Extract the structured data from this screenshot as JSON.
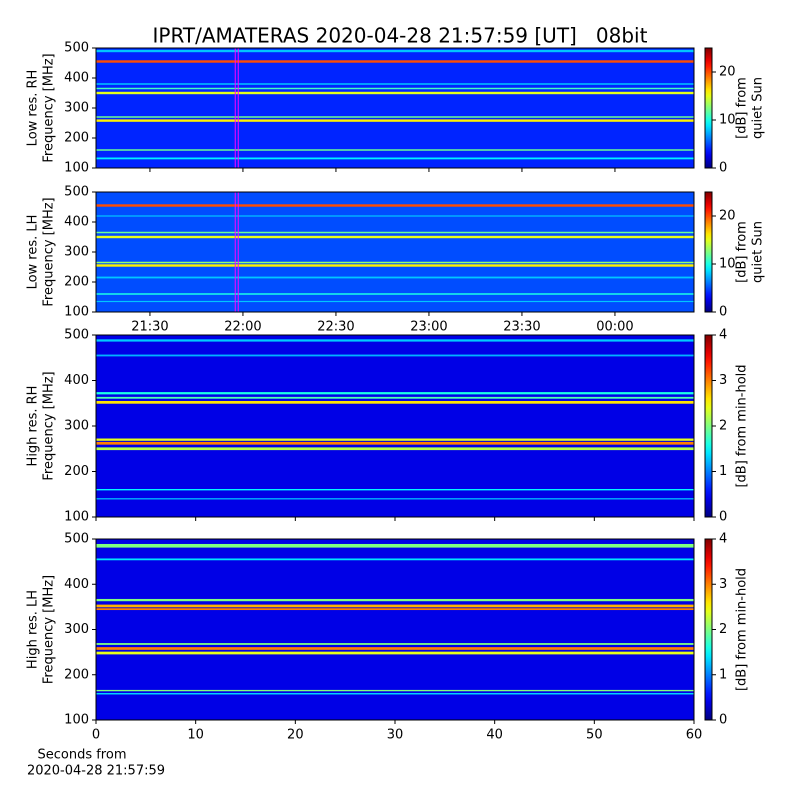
{
  "title": "IPRT/AMATERAS 2020-04-28 21:57:59 [UT]   08bit",
  "chart_data": [
    {
      "type": "heatmap",
      "y_label": [
        "Low res. RH",
        "Frequency [MHz]"
      ],
      "colormap": "jet",
      "ylim": [
        100,
        500
      ],
      "yticks": [
        100,
        200,
        300,
        400,
        500
      ],
      "xlim": [
        1272.6,
        1465.5
      ],
      "xticks": [
        1290,
        1320,
        1350,
        1380,
        1410,
        1440
      ],
      "marker": 1318,
      "marker_color": "#ff00ff",
      "colorbar": {
        "label": [
          "[dB] from",
          "quiet Sun"
        ],
        "lim": [
          0,
          25
        ],
        "ticks": [
          0,
          10,
          20
        ]
      },
      "background": 4,
      "bands": [
        {
          "freq": 490,
          "width": 8,
          "value": 8
        },
        {
          "freq": 455,
          "width": 8,
          "value": 20
        },
        {
          "freq": 380,
          "width": 4,
          "value": 9
        },
        {
          "freq": 365,
          "width": 5,
          "value": 11
        },
        {
          "freq": 350,
          "width": 8,
          "value": 15
        },
        {
          "freq": 270,
          "width": 5,
          "value": 12
        },
        {
          "freq": 258,
          "width": 8,
          "value": 16
        },
        {
          "freq": 160,
          "width": 5,
          "value": 12
        },
        {
          "freq": 132,
          "width": 6,
          "value": 9
        }
      ]
    },
    {
      "type": "heatmap",
      "y_label": [
        "Low res. LH",
        "Frequency [MHz]"
      ],
      "colormap": "jet",
      "ylim": [
        100,
        500
      ],
      "yticks": [
        100,
        200,
        300,
        400,
        500
      ],
      "xlim": [
        1272.6,
        1465.5
      ],
      "xticks": [
        {
          "value": 1290,
          "label": "21:30"
        },
        {
          "value": 1320,
          "label": "22:00"
        },
        {
          "value": 1350,
          "label": "22:30"
        },
        {
          "value": 1380,
          "label": "23:00"
        },
        {
          "value": 1410,
          "label": "23:30"
        },
        {
          "value": 1440,
          "label": "00:00"
        }
      ],
      "marker": 1318,
      "marker_color": "#ff00ff",
      "colorbar": {
        "label": [
          "[dB] from",
          "quiet Sun"
        ],
        "lim": [
          0,
          25
        ],
        "ticks": [
          0,
          10,
          20
        ]
      },
      "background": 5,
      "bands": [
        {
          "freq": 455,
          "width": 8,
          "value": 20
        },
        {
          "freq": 420,
          "width": 4,
          "value": 8
        },
        {
          "freq": 365,
          "width": 5,
          "value": 12
        },
        {
          "freq": 350,
          "width": 8,
          "value": 15
        },
        {
          "freq": 265,
          "width": 5,
          "value": 13
        },
        {
          "freq": 255,
          "width": 8,
          "value": 16
        },
        {
          "freq": 215,
          "width": 6,
          "value": 8
        },
        {
          "freq": 160,
          "width": 5,
          "value": 10
        },
        {
          "freq": 135,
          "width": 4,
          "value": 8
        }
      ]
    },
    {
      "type": "heatmap",
      "y_label": [
        "High res. RH",
        "Frequency [MHz]"
      ],
      "colormap": "jet",
      "ylim": [
        100,
        500
      ],
      "yticks": [
        100,
        200,
        300,
        400,
        500
      ],
      "xlim": [
        0,
        60
      ],
      "xticks": [
        0,
        10,
        20,
        30,
        40,
        50,
        60
      ],
      "colorbar": {
        "label": [
          "[dB] from min-hold"
        ],
        "lim": [
          0,
          4
        ],
        "ticks": [
          0,
          1,
          2,
          3,
          4
        ]
      },
      "background": 0.4,
      "bands": [
        {
          "freq": 488,
          "width": 5,
          "value": 1.3
        },
        {
          "freq": 455,
          "width": 4,
          "value": 1.2
        },
        {
          "freq": 372,
          "width": 5,
          "value": 1.6
        },
        {
          "freq": 362,
          "width": 4,
          "value": 1.8
        },
        {
          "freq": 352,
          "width": 6,
          "value": 2.6
        },
        {
          "freq": 270,
          "width": 5,
          "value": 2.4
        },
        {
          "freq": 262,
          "width": 6,
          "value": 3
        },
        {
          "freq": 250,
          "width": 6,
          "value": 2.2
        },
        {
          "freq": 160,
          "width": 3,
          "value": 1.5
        },
        {
          "freq": 140,
          "width": 3,
          "value": 1.2
        }
      ]
    },
    {
      "type": "heatmap",
      "y_label": [
        "High res. LH",
        "Frequency [MHz]"
      ],
      "colormap": "jet",
      "ylim": [
        100,
        500
      ],
      "yticks": [
        100,
        200,
        300,
        400,
        500
      ],
      "xlim": [
        0,
        60
      ],
      "xticks": [
        0,
        10,
        20,
        30,
        40,
        50,
        60
      ],
      "x_label": [
        "Seconds from",
        "2020-04-28 21:57:59"
      ],
      "colorbar": {
        "label": [
          "[dB] from min-hold"
        ],
        "lim": [
          0,
          4
        ],
        "ticks": [
          0,
          1,
          2,
          3,
          4
        ]
      },
      "background": 0.4,
      "bands": [
        {
          "freq": 485,
          "width": 8,
          "value": 2
        },
        {
          "freq": 455,
          "width": 4,
          "value": 1.4
        },
        {
          "freq": 365,
          "width": 5,
          "value": 2
        },
        {
          "freq": 352,
          "width": 6,
          "value": 2.8
        },
        {
          "freq": 345,
          "width": 4,
          "value": 3
        },
        {
          "freq": 268,
          "width": 4,
          "value": 2
        },
        {
          "freq": 258,
          "width": 6,
          "value": 3
        },
        {
          "freq": 248,
          "width": 6,
          "value": 2.4
        },
        {
          "freq": 165,
          "width": 3,
          "value": 2
        },
        {
          "freq": 158,
          "width": 3,
          "value": 1.4
        }
      ]
    }
  ]
}
